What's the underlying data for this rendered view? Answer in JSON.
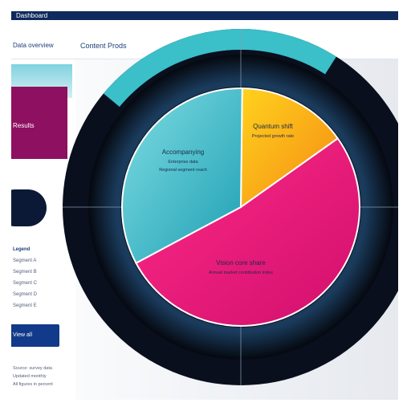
{
  "header": {
    "title": "Dashboard",
    "nav_left": "Data overview",
    "nav_right": "Content Prods"
  },
  "sidebar": {
    "card_label": "Results",
    "list": [
      "Legend",
      "Segment A",
      "Segment B",
      "Segment C",
      "Segment D",
      "Segment E"
    ],
    "button_label": "View all",
    "footer": [
      "Source: survey data",
      "Updated monthly",
      "All figures in percent"
    ]
  },
  "chart_data": {
    "type": "pie",
    "title": "",
    "slices": [
      {
        "label": "Quantum shift",
        "sub": "Projected growth rate",
        "value": 15,
        "color": "#f7a21a"
      },
      {
        "label": "Vision core share",
        "sub": "Annual market contribution index",
        "value": 52,
        "color": "#e6177a"
      },
      {
        "label": "Accompanying",
        "sub": "Enterprise data",
        "extra": "Regional segment reach",
        "value": 33,
        "color": "#2fb8c6"
      }
    ]
  },
  "colors": {
    "ring_dark": "#0a0f1e",
    "ring_teal": "#3bbfc9",
    "nav": "#0f2a5c",
    "accent": "#8e1060"
  }
}
